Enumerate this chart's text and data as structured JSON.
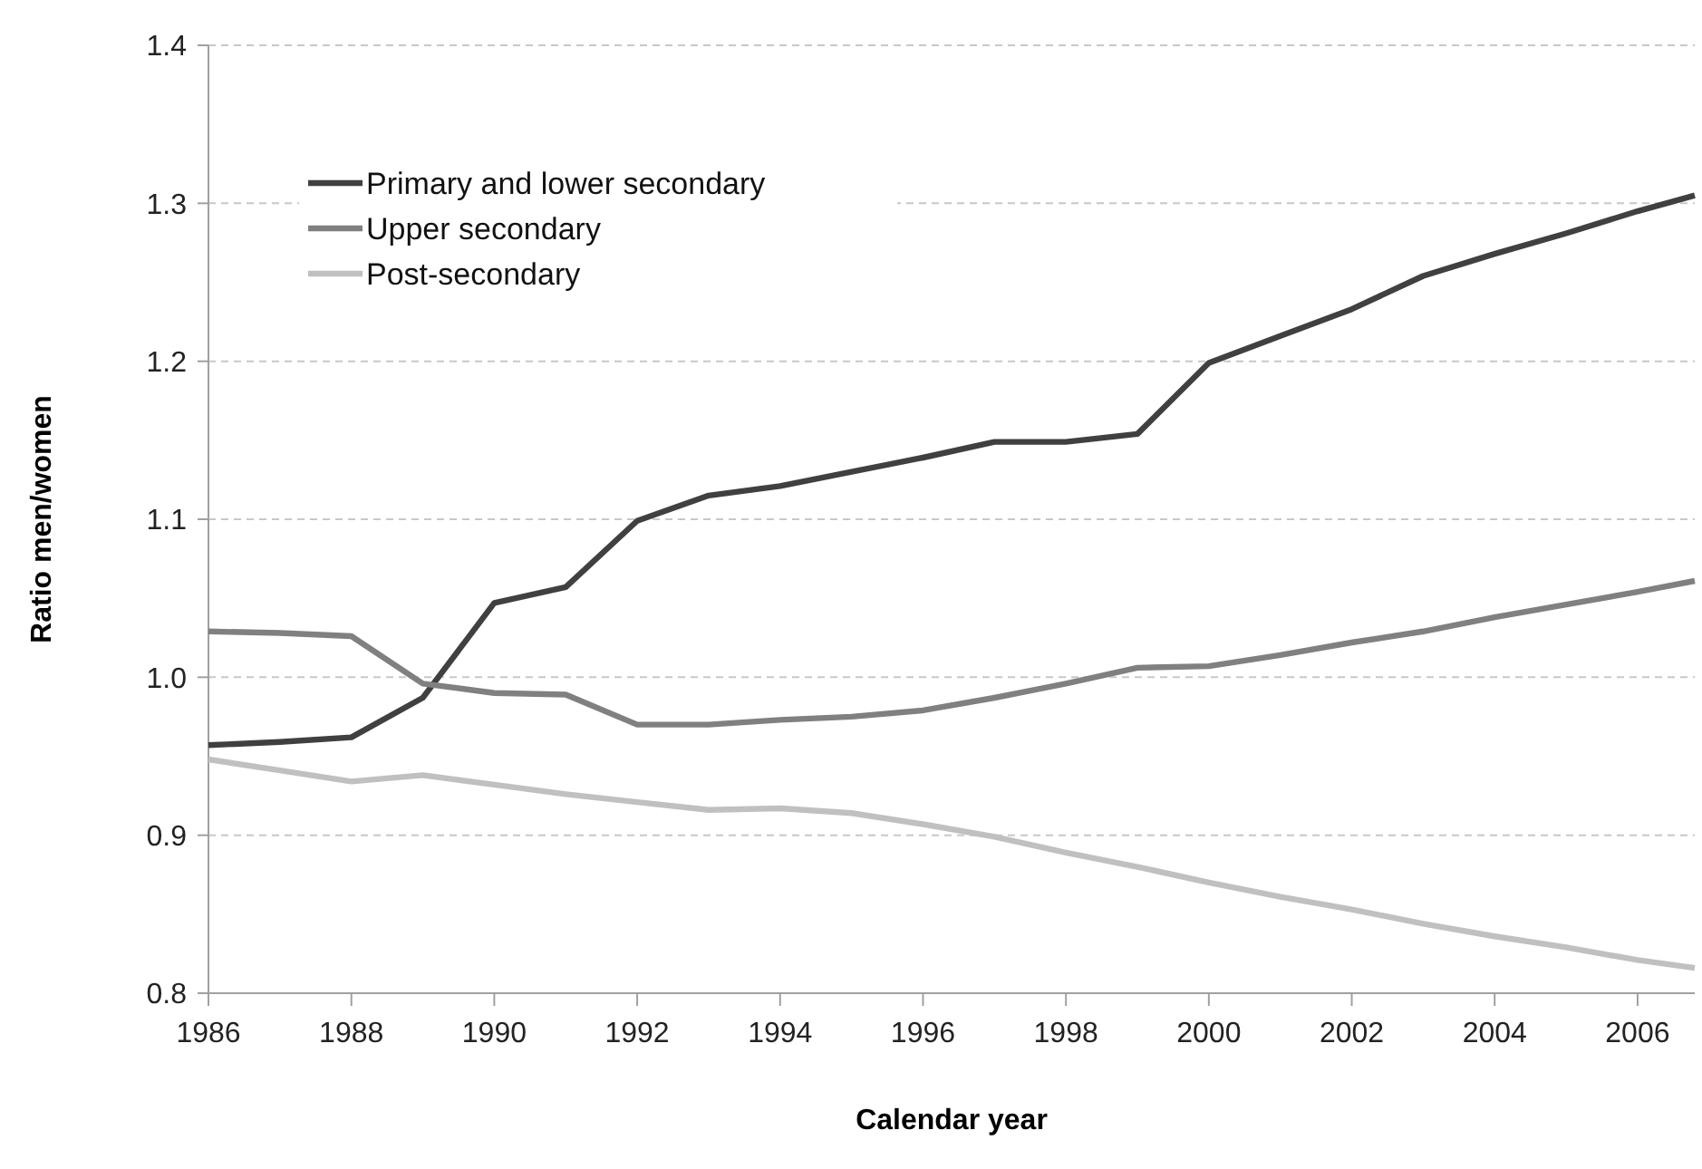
{
  "chart_data": {
    "type": "line",
    "xlabel": "Calendar year",
    "ylabel": "Ratio men/women",
    "x": [
      1986,
      1987,
      1988,
      1989,
      1990,
      1991,
      1992,
      1993,
      1994,
      1995,
      1996,
      1997,
      1998,
      1999,
      2000,
      2001,
      2002,
      2003,
      2004,
      2005,
      2006,
      2006.8
    ],
    "xlim": [
      1986,
      2006.8
    ],
    "xticks": [
      1986,
      1988,
      1990,
      1992,
      1994,
      1996,
      1998,
      2000,
      2002,
      2004,
      2006
    ],
    "ylim": [
      0.8,
      1.4
    ],
    "yticks": [
      {
        "value": 0.8,
        "label": "0.8"
      },
      {
        "value": 0.9,
        "label": "0.9"
      },
      {
        "value": 1.0,
        "label": "1.0"
      },
      {
        "value": 1.1,
        "label": "1.1"
      },
      {
        "value": 1.2,
        "label": "1.2"
      },
      {
        "value": 1.3,
        "label": "1.3"
      },
      {
        "value": 1.4,
        "label": "1.4"
      }
    ],
    "grid": "y",
    "legend": "top left",
    "marker": "none",
    "line_style": "solid",
    "series": [
      {
        "name": "Primary and lower secondary",
        "color": "#404040",
        "values": [
          0.957,
          0.959,
          0.962,
          0.987,
          1.047,
          1.057,
          1.099,
          1.115,
          1.121,
          1.13,
          1.139,
          1.149,
          1.149,
          1.154,
          1.199,
          1.216,
          1.233,
          1.254,
          1.268,
          1.281,
          1.295,
          1.305
        ]
      },
      {
        "name": "Upper secondary",
        "color": "#808080",
        "values": [
          1.029,
          1.028,
          1.026,
          0.996,
          0.99,
          0.989,
          0.97,
          0.97,
          0.973,
          0.975,
          0.979,
          0.987,
          0.996,
          1.006,
          1.007,
          1.014,
          1.022,
          1.029,
          1.038,
          1.046,
          1.054,
          1.061
        ]
      },
      {
        "name": "Post-secondary",
        "color": "#c0c0c0",
        "values": [
          0.948,
          0.941,
          0.934,
          0.938,
          0.932,
          0.926,
          0.921,
          0.916,
          0.917,
          0.914,
          0.907,
          0.899,
          0.889,
          0.88,
          0.87,
          0.861,
          0.853,
          0.844,
          0.836,
          0.829,
          0.821,
          0.816
        ]
      }
    ]
  }
}
